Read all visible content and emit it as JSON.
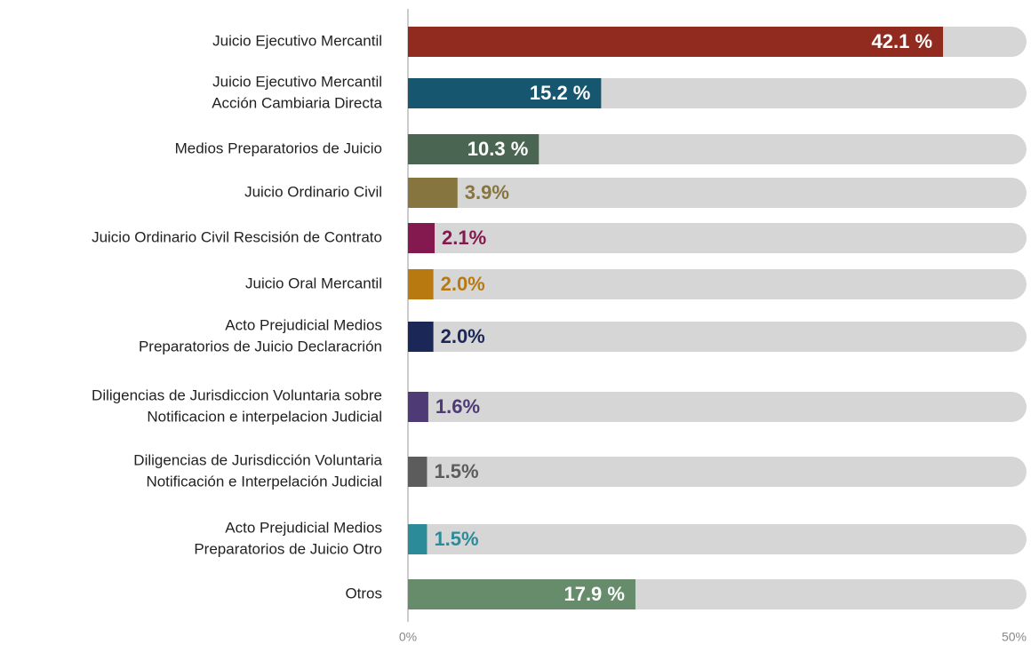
{
  "chart_data": {
    "type": "hbar",
    "categories": [
      [
        "Juicio Ejecutivo Mercantil"
      ],
      [
        "Juicio Ejecutivo Mercantil",
        "Acción Cambiaria Directa"
      ],
      [
        "Medios Preparatorios de Juicio"
      ],
      [
        "Juicio Ordinario Civil"
      ],
      [
        "Juicio Ordinario Civil Rescisión de Contrato"
      ],
      [
        "Juicio Oral Mercantil"
      ],
      [
        "Acto Prejudicial Medios",
        "Preparatorios de Juicio Declaracrión"
      ],
      [
        "Diligencias de Jurisdiccion Voluntaria sobre",
        "Notificacion e interpelacion Judicial"
      ],
      [
        "Diligencias de Jurisdicción Voluntaria",
        "Notificación e Interpelación Judicial"
      ],
      [
        "Acto Prejudicial Medios",
        "Preparatorios de Juicio Otro"
      ],
      [
        "Otros"
      ]
    ],
    "values": [
      42.1,
      15.2,
      10.3,
      3.9,
      2.1,
      2.0,
      2.0,
      1.6,
      1.5,
      1.5,
      17.9
    ],
    "value_labels": [
      "42.1 %",
      "15.2 %",
      "10.3 %",
      "3.9%",
      "2.1%",
      "2.0%",
      "2.0%",
      "1.6%",
      "1.5%",
      "1.5%",
      "17.9 %"
    ],
    "colors": [
      "#922b1f",
      "#16566f",
      "#4a6652",
      "#877540",
      "#84194f",
      "#b87a10",
      "#1b2857",
      "#4e3a74",
      "#5c5c5c",
      "#2b8b99",
      "#668c6c"
    ],
    "xlim": [
      0,
      50
    ],
    "xticks": [
      {
        "value": 0,
        "label": "0%"
      },
      {
        "value": 50,
        "label": "50%"
      }
    ]
  }
}
